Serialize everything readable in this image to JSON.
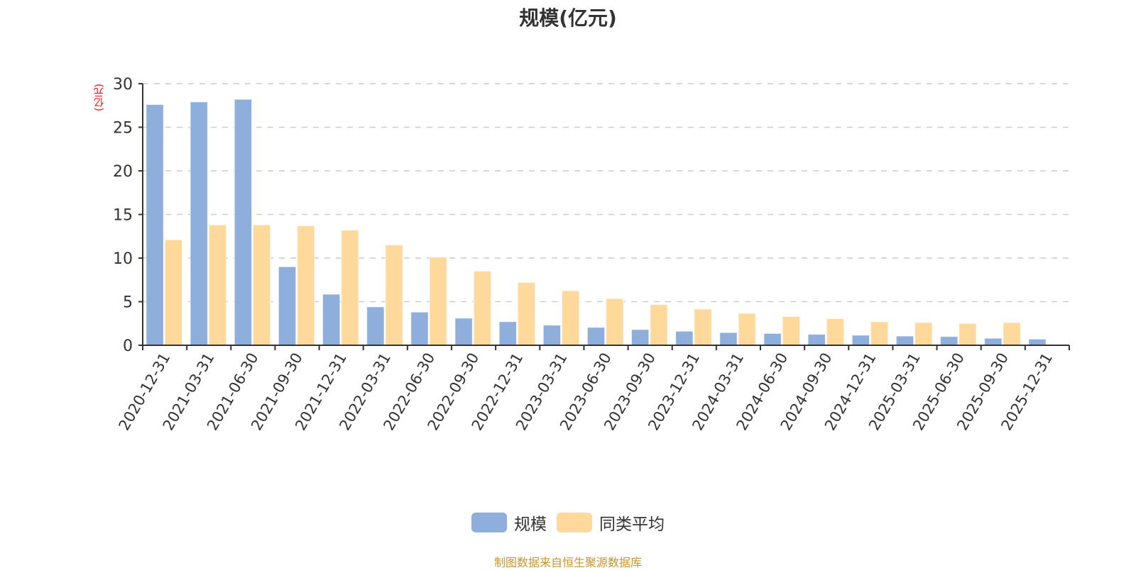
{
  "title": "规模(亿元)",
  "y_unit_label": "(亿元)",
  "legend": [
    {
      "label": "规模",
      "color": "#8eaedb"
    },
    {
      "label": "同类平均",
      "color": "#fed99b"
    }
  ],
  "source_note": "制图数据来自恒生聚源数据库",
  "chart_data": {
    "type": "bar",
    "title": "规模(亿元)",
    "xlabel": "",
    "ylabel": "(亿元)",
    "ylim": [
      0,
      30
    ],
    "yticks": [
      0,
      5,
      10,
      15,
      20,
      25,
      30
    ],
    "grid": true,
    "legend_position": "bottom",
    "categories": [
      "2020-12-31",
      "2021-03-31",
      "2021-06-30",
      "2021-09-30",
      "2021-12-31",
      "2022-03-31",
      "2022-06-30",
      "2022-09-30",
      "2022-12-31",
      "2023-03-31",
      "2023-06-30",
      "2023-09-30",
      "2023-12-31",
      "2024-03-31",
      "2024-06-30",
      "2024-09-30",
      "2024-12-31",
      "2025-03-31",
      "2025-06-30",
      "2025-09-30",
      "2025-12-31"
    ],
    "series": [
      {
        "name": "规模",
        "color": "#8eaedb",
        "values": [
          27.6,
          27.9,
          28.2,
          9.0,
          5.85,
          4.4,
          3.8,
          3.1,
          2.7,
          2.3,
          2.05,
          1.8,
          1.6,
          1.45,
          1.35,
          1.25,
          1.15,
          1.05,
          1.0,
          0.8,
          0.7
        ]
      },
      {
        "name": "同类平均",
        "color": "#fed99b",
        "values": [
          12.1,
          13.8,
          13.8,
          13.7,
          13.2,
          11.5,
          10.1,
          8.5,
          7.2,
          6.25,
          5.35,
          4.65,
          4.15,
          3.65,
          3.3,
          3.05,
          2.7,
          2.6,
          2.5,
          2.6,
          null
        ]
      }
    ]
  }
}
